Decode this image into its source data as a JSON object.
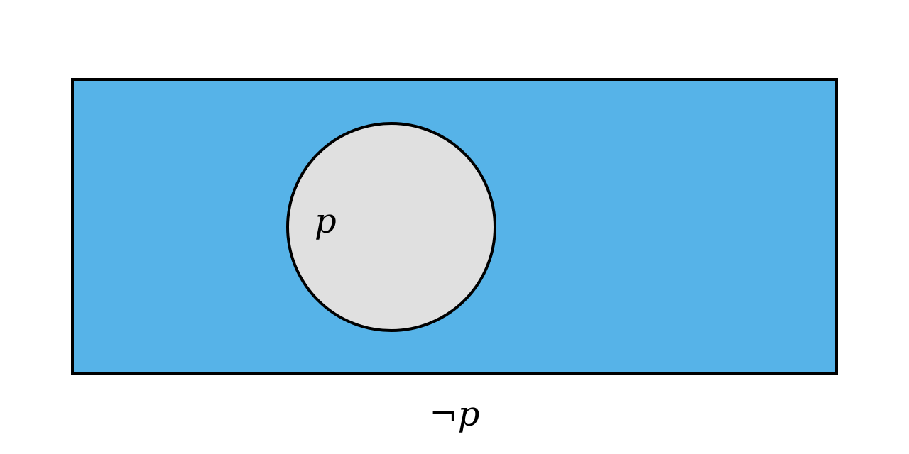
{
  "diagram": {
    "type": "venn",
    "universe": {
      "fill_color": "#56b3e8",
      "stroke_color": "#000000"
    },
    "set_p": {
      "label": "p",
      "fill_color": "#e0e0e0",
      "stroke_color": "#000000"
    },
    "caption": {
      "negation_symbol": "¬",
      "variable": "p"
    }
  }
}
